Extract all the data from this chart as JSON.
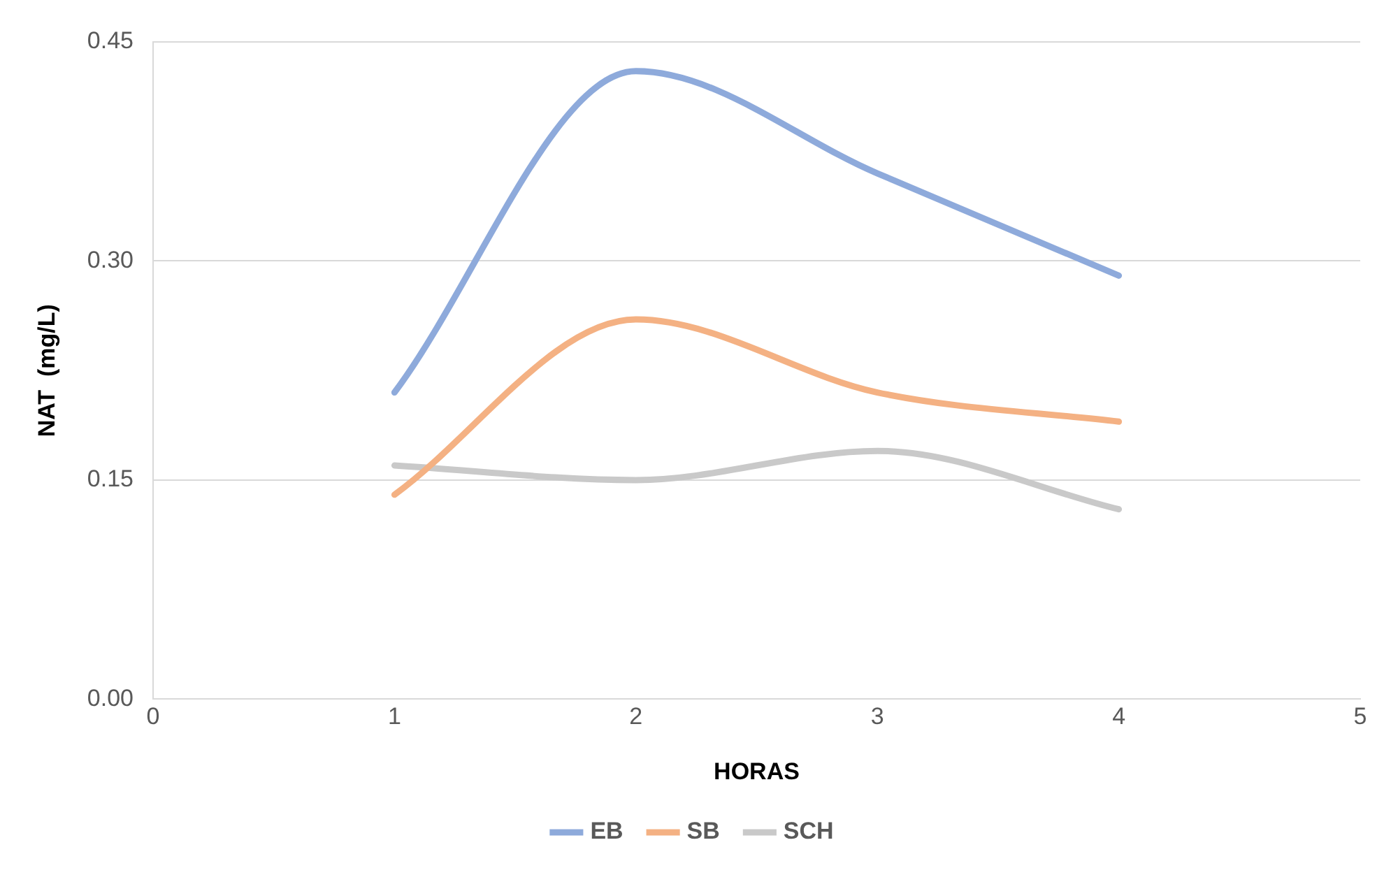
{
  "chart_data": {
    "type": "line",
    "xlabel": "HORAS",
    "ylabel": "NAT  (mg/L)",
    "xlim": [
      0,
      5
    ],
    "xticks": [
      0,
      1,
      2,
      3,
      4,
      5
    ],
    "ylim": [
      0,
      0.45
    ],
    "yticks": [
      {
        "value": 0,
        "label": "0.00"
      },
      {
        "value": 0.15,
        "label": "0.15"
      },
      {
        "value": 0.3,
        "label": "0.30"
      },
      {
        "value": 0.45,
        "label": "0.45"
      }
    ],
    "x": [
      1,
      2,
      3,
      4
    ],
    "series": [
      {
        "name": "EB",
        "color": "#8eaadb",
        "values": [
          0.21,
          0.43,
          0.36,
          0.29
        ]
      },
      {
        "name": "SB",
        "color": "#f4b183",
        "values": [
          0.14,
          0.26,
          0.21,
          0.19
        ]
      },
      {
        "name": "SCH",
        "color": "#c9c9c9",
        "values": [
          0.16,
          0.15,
          0.17,
          0.13
        ]
      }
    ],
    "grid": "y",
    "legend": "bottom",
    "marker": "none",
    "line_style": "solid"
  }
}
